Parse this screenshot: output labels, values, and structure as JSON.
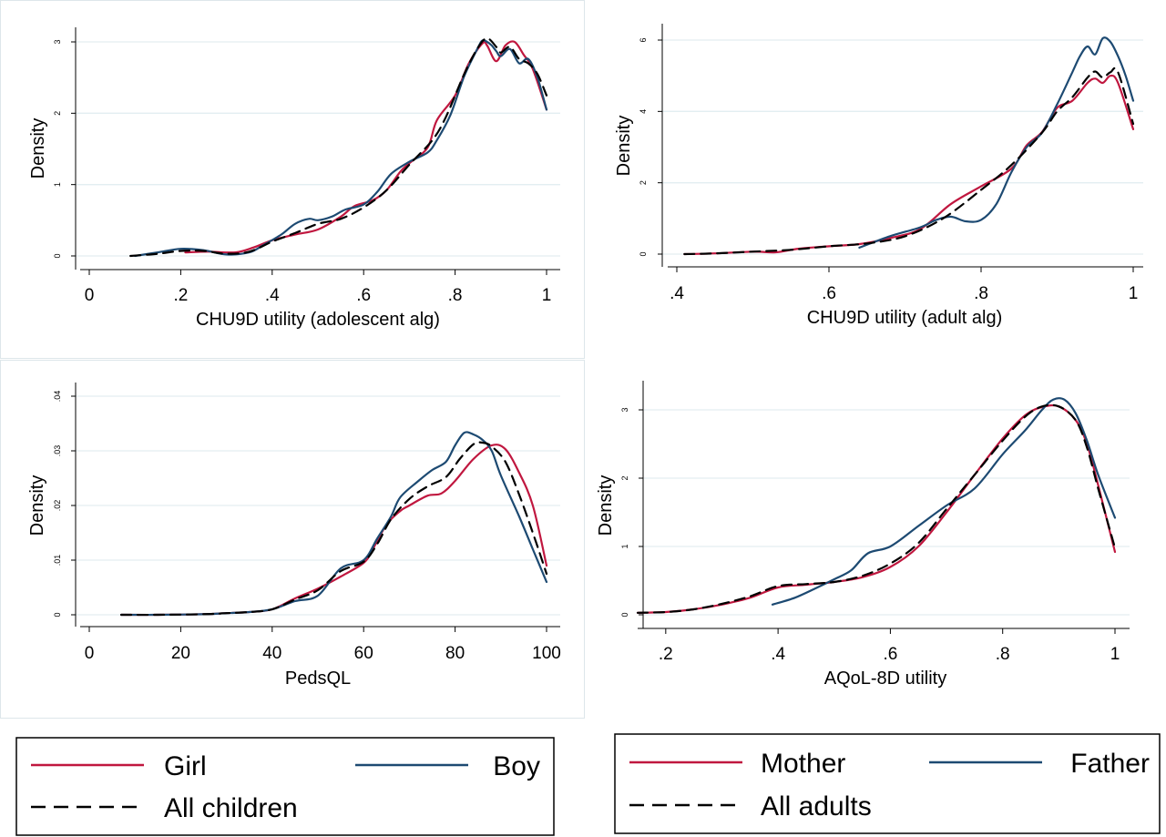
{
  "colors": {
    "red": "#c0173f",
    "blue": "#1d4a72",
    "black": "#000000"
  },
  "chart_data": [
    {
      "type": "line",
      "xlabel": "CHU9D utility (adolescent alg)",
      "ylabel": "Density",
      "xlim": [
        0,
        1
      ],
      "ylim": [
        0,
        3
      ],
      "xticks": [
        0,
        0.2,
        0.4,
        0.6,
        0.8,
        1
      ],
      "xtick_labels": [
        "0",
        ".2",
        ".4",
        ".6",
        ".8",
        "1"
      ],
      "yticks": [
        0,
        1,
        2,
        3
      ],
      "ytick_labels": [
        "0",
        "1",
        "2",
        "3"
      ],
      "grid": true,
      "series": [
        {
          "name": "Girl",
          "color": "#c0173f",
          "dash": "solid",
          "x": [
            0.21,
            0.26,
            0.32,
            0.36,
            0.4,
            0.45,
            0.5,
            0.55,
            0.58,
            0.62,
            0.65,
            0.68,
            0.7,
            0.74,
            0.76,
            0.8,
            0.83,
            0.86,
            0.87,
            0.89,
            0.91,
            0.93,
            0.95,
            0.97,
            1.0
          ],
          "y": [
            0.05,
            0.06,
            0.05,
            0.12,
            0.22,
            0.3,
            0.37,
            0.55,
            0.7,
            0.78,
            0.92,
            1.18,
            1.3,
            1.52,
            1.9,
            2.25,
            2.7,
            2.98,
            2.95,
            2.73,
            2.95,
            3.0,
            2.82,
            2.62,
            2.05
          ]
        },
        {
          "name": "Boy",
          "color": "#1d4a72",
          "dash": "solid",
          "x": [
            0.1,
            0.15,
            0.2,
            0.25,
            0.3,
            0.35,
            0.38,
            0.42,
            0.45,
            0.48,
            0.5,
            0.53,
            0.56,
            0.6,
            0.63,
            0.66,
            0.7,
            0.74,
            0.76,
            0.79,
            0.82,
            0.85,
            0.86,
            0.87,
            0.88,
            0.89,
            0.9,
            0.92,
            0.94,
            0.96,
            0.98,
            1.0
          ],
          "y": [
            0.0,
            0.05,
            0.1,
            0.08,
            0.02,
            0.05,
            0.15,
            0.3,
            0.45,
            0.52,
            0.5,
            0.55,
            0.65,
            0.72,
            0.9,
            1.15,
            1.32,
            1.45,
            1.62,
            1.98,
            2.52,
            2.92,
            3.02,
            3.0,
            2.95,
            2.87,
            2.8,
            2.9,
            2.7,
            2.76,
            2.5,
            2.05
          ]
        },
        {
          "name": "All children",
          "color": "#000000",
          "dash": "dashed",
          "x": [
            0.09,
            0.15,
            0.2,
            0.25,
            0.3,
            0.35,
            0.4,
            0.45,
            0.5,
            0.55,
            0.6,
            0.65,
            0.7,
            0.75,
            0.78,
            0.82,
            0.85,
            0.87,
            0.89,
            0.9,
            0.92,
            0.94,
            0.96,
            0.98,
            1.0
          ],
          "y": [
            0.0,
            0.03,
            0.07,
            0.07,
            0.03,
            0.06,
            0.2,
            0.32,
            0.45,
            0.52,
            0.68,
            0.92,
            1.28,
            1.62,
            1.95,
            2.55,
            2.92,
            3.05,
            2.93,
            2.85,
            2.93,
            2.76,
            2.7,
            2.55,
            2.25
          ]
        }
      ]
    },
    {
      "type": "line",
      "xlabel": "CHU9D utility (adult alg)",
      "ylabel": "Density",
      "xlim": [
        0.4,
        1
      ],
      "ylim": [
        0,
        6
      ],
      "xticks": [
        0.4,
        0.6,
        0.8,
        1
      ],
      "xtick_labels": [
        ".4",
        ".6",
        ".8",
        "1"
      ],
      "yticks": [
        0,
        2,
        4,
        6
      ],
      "ytick_labels": [
        "0",
        "2",
        "4",
        "6"
      ],
      "grid": true,
      "series": [
        {
          "name": "Mother",
          "color": "#c0173f",
          "dash": "solid",
          "x": [
            0.41,
            0.45,
            0.5,
            0.53,
            0.56,
            0.6,
            0.64,
            0.68,
            0.72,
            0.76,
            0.8,
            0.84,
            0.86,
            0.88,
            0.9,
            0.92,
            0.94,
            0.95,
            0.96,
            0.97,
            0.98,
            1.0
          ],
          "y": [
            0.0,
            0.02,
            0.07,
            0.05,
            0.15,
            0.22,
            0.28,
            0.45,
            0.7,
            1.4,
            1.9,
            2.4,
            3.05,
            3.42,
            4.1,
            4.3,
            4.8,
            4.92,
            4.8,
            5.0,
            4.8,
            3.5
          ]
        },
        {
          "name": "Father",
          "color": "#1d4a72",
          "dash": "solid",
          "x": [
            0.64,
            0.68,
            0.72,
            0.74,
            0.76,
            0.78,
            0.8,
            0.82,
            0.84,
            0.86,
            0.88,
            0.9,
            0.92,
            0.93,
            0.94,
            0.95,
            0.96,
            0.97,
            0.98,
            0.99,
            1.0
          ],
          "y": [
            0.18,
            0.5,
            0.75,
            0.95,
            1.05,
            0.92,
            0.96,
            1.4,
            2.3,
            3.0,
            3.4,
            4.2,
            5.1,
            5.55,
            5.82,
            5.6,
            6.05,
            5.95,
            5.55,
            5.0,
            4.3
          ]
        },
        {
          "name": "All adults",
          "color": "#000000",
          "dash": "dashed",
          "x": [
            0.41,
            0.45,
            0.5,
            0.55,
            0.6,
            0.65,
            0.7,
            0.75,
            0.8,
            0.84,
            0.88,
            0.9,
            0.92,
            0.94,
            0.95,
            0.96,
            0.97,
            0.98,
            1.0
          ],
          "y": [
            0.0,
            0.02,
            0.07,
            0.12,
            0.22,
            0.3,
            0.5,
            1.0,
            1.8,
            2.5,
            3.4,
            4.0,
            4.4,
            4.95,
            5.12,
            4.95,
            5.1,
            5.1,
            3.65
          ]
        }
      ]
    },
    {
      "type": "line",
      "xlabel": "PedsQL",
      "ylabel": "Density",
      "xlim": [
        0,
        100
      ],
      "ylim": [
        0,
        0.04
      ],
      "xticks": [
        0,
        20,
        40,
        60,
        80,
        100
      ],
      "xtick_labels": [
        "0",
        "20",
        "40",
        "60",
        "80",
        "100"
      ],
      "yticks": [
        0,
        0.01,
        0.02,
        0.03,
        0.04
      ],
      "ytick_labels": [
        "0",
        ".01",
        ".02",
        ".03",
        ".04"
      ],
      "grid": true,
      "series": [
        {
          "name": "Girl",
          "color": "#c0173f",
          "dash": "solid",
          "x": [
            7,
            15,
            25,
            30,
            35,
            40,
            45,
            50,
            55,
            60,
            62,
            65,
            68,
            70,
            74,
            77,
            80,
            84,
            88,
            91,
            94,
            97,
            100
          ],
          "y": [
            0.0,
            0.0,
            0.0001,
            0.0003,
            0.0005,
            0.001,
            0.003,
            0.0048,
            0.007,
            0.0095,
            0.012,
            0.0165,
            0.019,
            0.02,
            0.0218,
            0.0222,
            0.0245,
            0.0285,
            0.031,
            0.0303,
            0.026,
            0.02,
            0.009
          ]
        },
        {
          "name": "Boy",
          "color": "#1d4a72",
          "dash": "solid",
          "x": [
            7,
            15,
            25,
            30,
            35,
            40,
            45,
            50,
            55,
            60,
            63,
            66,
            68,
            72,
            75,
            78,
            80,
            82,
            84,
            86,
            88,
            90,
            94,
            97,
            100
          ],
          "y": [
            0.0,
            0.0,
            0.0001,
            0.0003,
            0.0005,
            0.001,
            0.0025,
            0.0035,
            0.0085,
            0.01,
            0.014,
            0.018,
            0.0215,
            0.0245,
            0.0265,
            0.028,
            0.031,
            0.0333,
            0.033,
            0.032,
            0.03,
            0.0255,
            0.018,
            0.012,
            0.006
          ]
        },
        {
          "name": "All children",
          "color": "#000000",
          "dash": "dashed",
          "x": [
            7,
            15,
            25,
            30,
            35,
            40,
            45,
            50,
            55,
            60,
            63,
            66,
            70,
            74,
            78,
            81,
            84,
            86,
            88,
            91,
            94,
            97,
            100
          ],
          "y": [
            0.0,
            0.0,
            0.0001,
            0.0003,
            0.0005,
            0.001,
            0.0028,
            0.0045,
            0.008,
            0.0097,
            0.013,
            0.0175,
            0.0212,
            0.0235,
            0.0252,
            0.0285,
            0.0312,
            0.0315,
            0.0308,
            0.028,
            0.022,
            0.015,
            0.0075
          ]
        }
      ]
    },
    {
      "type": "line",
      "xlabel": "AQoL-8D utility",
      "ylabel": "Density",
      "xlim": [
        0.15,
        1
      ],
      "ylim": [
        0,
        3
      ],
      "xticks": [
        0.2,
        0.4,
        0.6,
        0.8,
        1
      ],
      "xtick_labels": [
        ".2",
        ".4",
        ".6",
        ".8",
        "1"
      ],
      "yticks": [
        0,
        1,
        2,
        3
      ],
      "ytick_labels": [
        "0",
        "1",
        "2",
        "3"
      ],
      "grid": true,
      "series": [
        {
          "name": "Mother",
          "color": "#c0173f",
          "dash": "solid",
          "x": [
            0.15,
            0.2,
            0.25,
            0.3,
            0.35,
            0.4,
            0.45,
            0.5,
            0.55,
            0.6,
            0.65,
            0.7,
            0.75,
            0.8,
            0.84,
            0.87,
            0.9,
            0.93,
            0.95,
            0.97,
            1.0
          ],
          "y": [
            0.03,
            0.04,
            0.08,
            0.15,
            0.25,
            0.4,
            0.44,
            0.48,
            0.55,
            0.7,
            1.0,
            1.5,
            2.05,
            2.58,
            2.92,
            3.04,
            3.05,
            2.85,
            2.5,
            1.9,
            0.92
          ]
        },
        {
          "name": "Father",
          "color": "#1d4a72",
          "dash": "solid",
          "x": [
            0.39,
            0.43,
            0.47,
            0.5,
            0.53,
            0.56,
            0.6,
            0.65,
            0.7,
            0.75,
            0.8,
            0.84,
            0.87,
            0.89,
            0.91,
            0.93,
            0.95,
            0.97,
            1.0
          ],
          "y": [
            0.15,
            0.25,
            0.4,
            0.52,
            0.65,
            0.9,
            1.0,
            1.3,
            1.6,
            1.85,
            2.35,
            2.7,
            3.0,
            3.15,
            3.15,
            2.95,
            2.55,
            2.05,
            1.42
          ]
        },
        {
          "name": "All adults",
          "color": "#000000",
          "dash": "dashed",
          "x": [
            0.15,
            0.2,
            0.25,
            0.3,
            0.35,
            0.4,
            0.45,
            0.5,
            0.55,
            0.6,
            0.65,
            0.7,
            0.75,
            0.8,
            0.84,
            0.87,
            0.9,
            0.93,
            0.95,
            0.97,
            1.0
          ],
          "y": [
            0.03,
            0.04,
            0.08,
            0.16,
            0.27,
            0.42,
            0.45,
            0.48,
            0.57,
            0.75,
            1.05,
            1.55,
            2.05,
            2.55,
            2.9,
            3.05,
            3.05,
            2.85,
            2.45,
            1.85,
            0.98
          ]
        }
      ]
    }
  ],
  "legends": [
    {
      "entries": [
        {
          "label": "Girl",
          "color": "#c0173f",
          "dash": "solid"
        },
        {
          "label": "Boy",
          "color": "#1d4a72",
          "dash": "solid"
        },
        {
          "label": "All children",
          "color": "#000000",
          "dash": "dashed"
        }
      ]
    },
    {
      "entries": [
        {
          "label": "Mother",
          "color": "#c0173f",
          "dash": "solid"
        },
        {
          "label": "Father",
          "color": "#1d4a72",
          "dash": "solid"
        },
        {
          "label": "All adults",
          "color": "#000000",
          "dash": "dashed"
        }
      ]
    }
  ]
}
